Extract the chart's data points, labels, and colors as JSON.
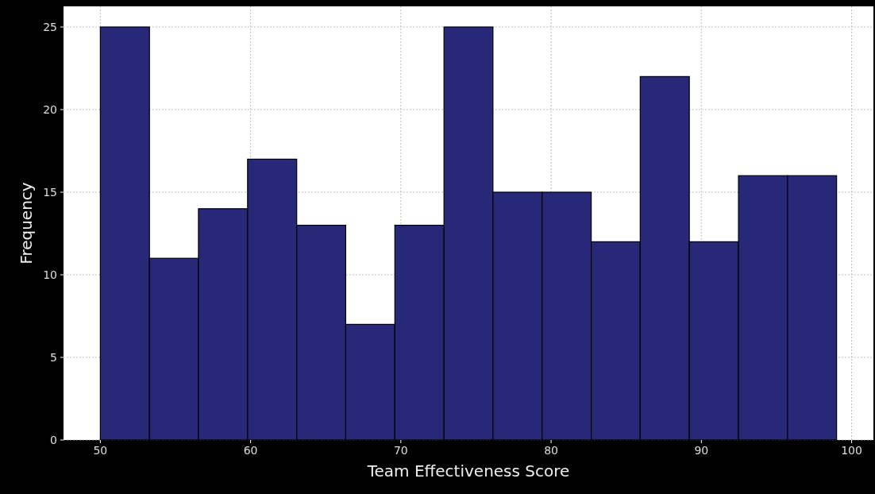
{
  "chart_data": {
    "type": "histogram",
    "xlabel": "Team Effectiveness Score",
    "ylabel": "Frequency",
    "bins": [
      50,
      53.27,
      56.53,
      59.8,
      63.07,
      66.33,
      69.6,
      72.87,
      76.13,
      79.4,
      82.67,
      85.93,
      89.2,
      92.47,
      95.73,
      99
    ],
    "values": [
      25,
      11,
      14,
      17,
      13,
      7,
      13,
      25,
      15,
      15,
      12,
      22,
      12,
      16,
      16
    ],
    "color": "#282878",
    "xlim": [
      47.55,
      101.45
    ],
    "xticks": [
      50,
      60,
      70,
      80,
      90,
      100
    ],
    "ylim": [
      0,
      26.25
    ],
    "yticks": [
      0,
      5,
      10,
      15,
      20,
      25
    ],
    "grid": true
  }
}
